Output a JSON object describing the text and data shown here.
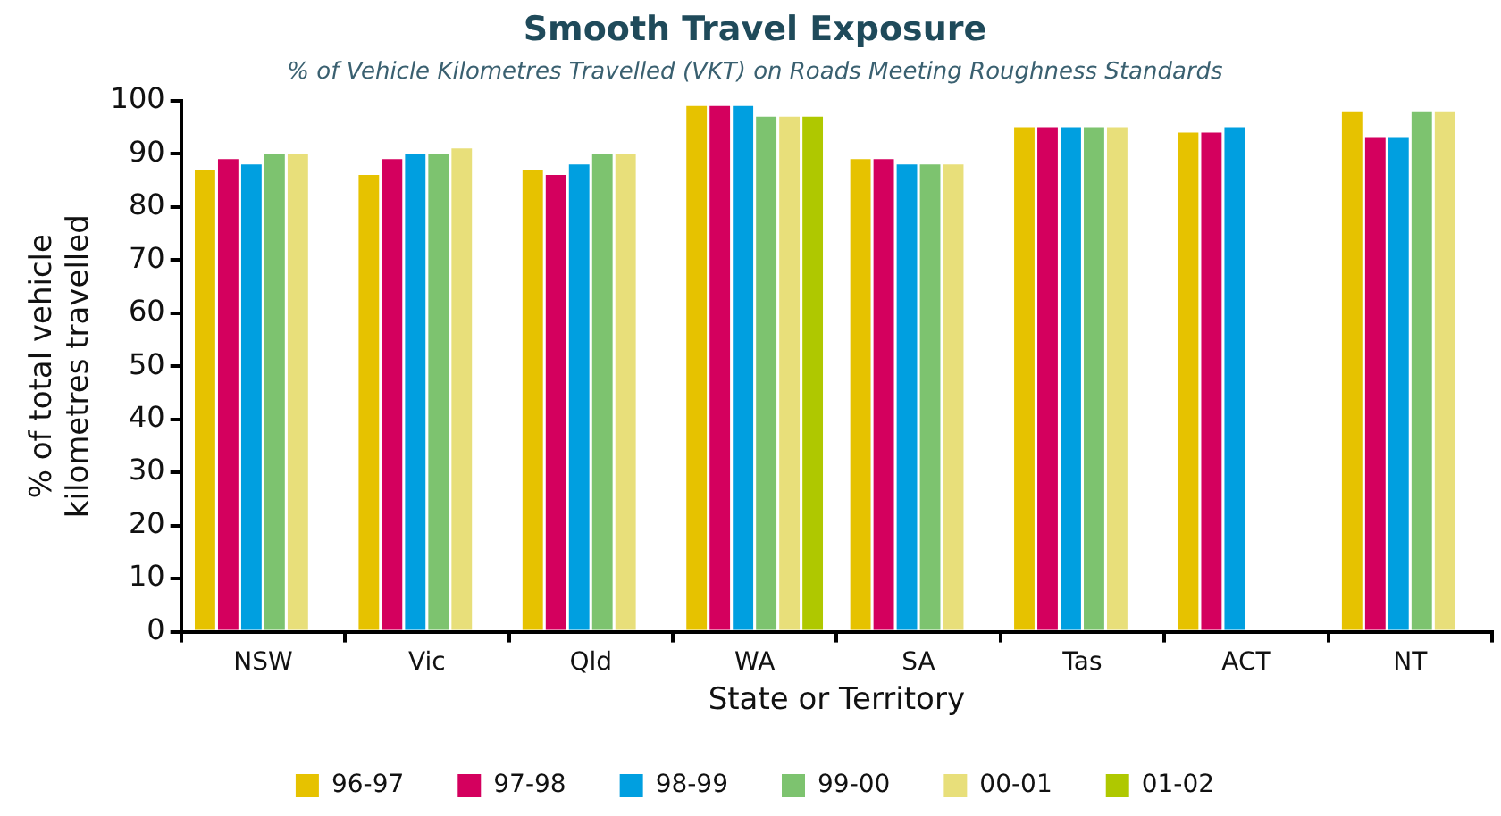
{
  "chart_data": {
    "type": "bar",
    "title": "Smooth Travel Exposure",
    "subtitle": "% of Vehicle Kilometres Travelled (VKT) on Roads Meeting Roughness Standards",
    "xlabel": "State or Territory",
    "ylabel": "% of total vehicle\nkilometres travelled",
    "categories": [
      "NSW",
      "Vic",
      "Qld",
      "WA",
      "SA",
      "Tas",
      "ACT",
      "NT"
    ],
    "series": [
      {
        "name": "96-97",
        "color": "#e6c200",
        "values": [
          87,
          86,
          87,
          99,
          89,
          95,
          94,
          98
        ]
      },
      {
        "name": "97-98",
        "color": "#d4005e",
        "values": [
          89,
          89,
          86,
          99,
          89,
          95,
          94,
          93
        ]
      },
      {
        "name": "98-99",
        "color": "#009fe0",
        "values": [
          88,
          90,
          88,
          99,
          88,
          95,
          95,
          93
        ]
      },
      {
        "name": "99-00",
        "color": "#7dc36f",
        "values": [
          90,
          90,
          90,
          97,
          88,
          95,
          null,
          98
        ]
      },
      {
        "name": "00-01",
        "color": "#e8df7a",
        "values": [
          90,
          91,
          90,
          97,
          88,
          95,
          null,
          98
        ]
      },
      {
        "name": "01-02",
        "color": "#afc800",
        "values": [
          null,
          null,
          null,
          97,
          null,
          null,
          null,
          null
        ]
      }
    ],
    "ylim": [
      0,
      100
    ],
    "yticks": [
      0,
      10,
      20,
      30,
      40,
      50,
      60,
      70,
      80,
      90,
      100
    ],
    "grid": false,
    "legend": "bottom"
  }
}
